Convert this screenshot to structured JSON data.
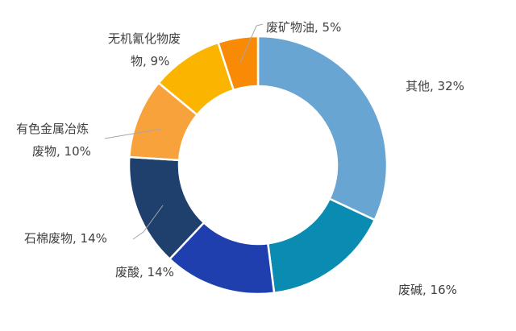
{
  "chart_data": {
    "type": "pie",
    "variant": "donut",
    "title": "",
    "legend": "none",
    "slices": [
      {
        "label": "其他",
        "value": 32,
        "text": "其他, 32%",
        "color": "#68a5d3"
      },
      {
        "label": "废碱",
        "value": 16,
        "text": "废碱, 16%",
        "color": "#0a8bb1"
      },
      {
        "label": "废酸",
        "value": 14,
        "text": "废酸, 14%",
        "color": "#1f3fae"
      },
      {
        "label": "石棉废物",
        "value": 14,
        "text": "石棉废物, 14%",
        "color": "#1f406c"
      },
      {
        "label": "有色金属冶炼废物",
        "value": 10,
        "text_lines": [
          "有色金属冶炼",
          "废物, 10%"
        ],
        "color": "#f8a23c"
      },
      {
        "label": "无机氰化物废物",
        "value": 9,
        "text_lines": [
          "无机氰化物废",
          "物, 9%"
        ],
        "color": "#fbb400"
      },
      {
        "label": "废矿物油",
        "value": 5,
        "text": "废矿物油, 5%",
        "color": "#f88a05"
      }
    ]
  }
}
